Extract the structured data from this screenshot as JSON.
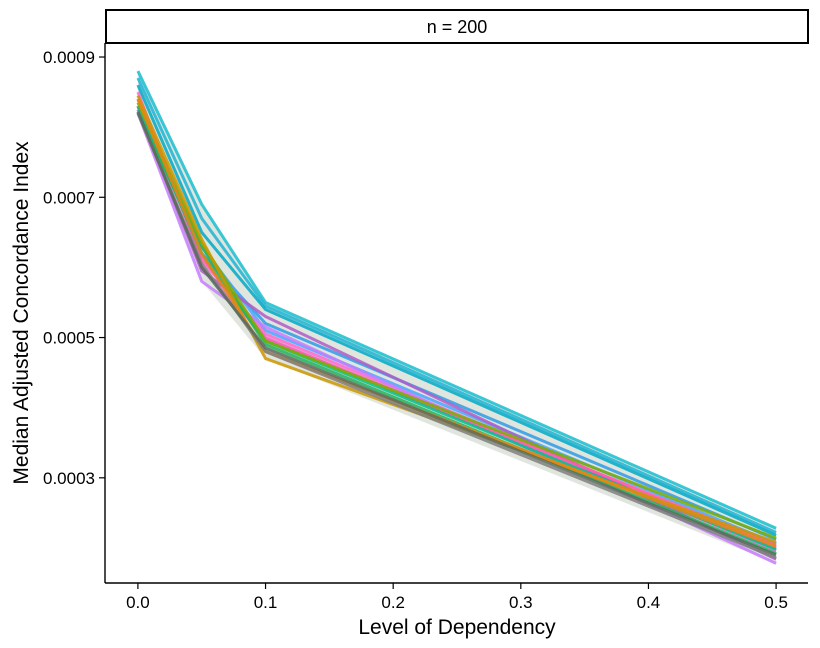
{
  "chart_data": {
    "type": "line",
    "facet_label": "n = 200",
    "xlabel": "Level of Dependency",
    "ylabel": "Median Adjusted Concordance Index",
    "x": [
      0.0,
      0.05,
      0.1,
      0.5
    ],
    "xlim": [
      -0.025,
      0.525
    ],
    "ylim": [
      0.00015,
      0.00092
    ],
    "x_ticks": [
      0.0,
      0.1,
      0.2,
      0.3,
      0.4,
      0.5
    ],
    "x_tick_labels": [
      "0.0",
      "0.1",
      "0.2",
      "0.3",
      "0.4",
      "0.5"
    ],
    "y_ticks": [
      0.0003,
      0.0005,
      0.0007,
      0.0009
    ],
    "y_tick_labels": [
      "0.0003",
      "0.0005",
      "0.0007",
      "0.0009"
    ],
    "grid": false,
    "legend": "none",
    "band_fill": "#dde3da",
    "series": [
      {
        "color": "#17becf",
        "values": [
          0.00088,
          0.00069,
          0.00055,
          0.000228
        ]
      },
      {
        "color": "#1fb3d6",
        "values": [
          0.00087,
          0.00067,
          0.000545,
          0.000222
        ]
      },
      {
        "color": "#00a9c7",
        "values": [
          0.00086,
          0.00065,
          0.00054,
          0.000218
        ]
      },
      {
        "color": "#2f9be8",
        "values": [
          0.00084,
          0.00062,
          0.00052,
          0.000212
        ]
      },
      {
        "color": "#4aa3ff",
        "values": [
          0.00083,
          0.00063,
          0.00051,
          0.000206
        ]
      },
      {
        "color": "#ff66cc",
        "values": [
          0.00085,
          0.00061,
          0.000505,
          0.0002
        ]
      },
      {
        "color": "#e86bd6",
        "values": [
          0.00083,
          0.0006,
          0.0005,
          0.000196
        ]
      },
      {
        "color": "#c77cff",
        "values": [
          0.00082,
          0.00058,
          0.000515,
          0.000178
        ]
      },
      {
        "color": "#b05cc8",
        "values": [
          0.000825,
          0.000595,
          0.00053,
          0.000184
        ]
      },
      {
        "color": "#ff5ea8",
        "values": [
          0.00084,
          0.000615,
          0.000498,
          0.000204
        ]
      },
      {
        "color": "#00c08b",
        "values": [
          0.00083,
          0.00062,
          0.000495,
          0.000198
        ]
      },
      {
        "color": "#21b35a",
        "values": [
          0.00082,
          0.00063,
          0.00049,
          0.000192
        ]
      },
      {
        "color": "#7cae00",
        "values": [
          0.000835,
          0.000635,
          0.000495,
          0.000214
        ]
      },
      {
        "color": "#cd9600",
        "values": [
          0.000845,
          0.00064,
          0.00047,
          0.000208
        ]
      },
      {
        "color": "#e68613",
        "values": [
          0.00084,
          0.00062,
          0.00048,
          0.000202
        ]
      },
      {
        "color": "#808080",
        "values": [
          0.00082,
          0.000605,
          0.00048,
          0.000186
        ]
      },
      {
        "color": "#5b6b5b",
        "values": [
          0.000822,
          0.0006,
          0.000485,
          0.00019
        ]
      }
    ]
  }
}
